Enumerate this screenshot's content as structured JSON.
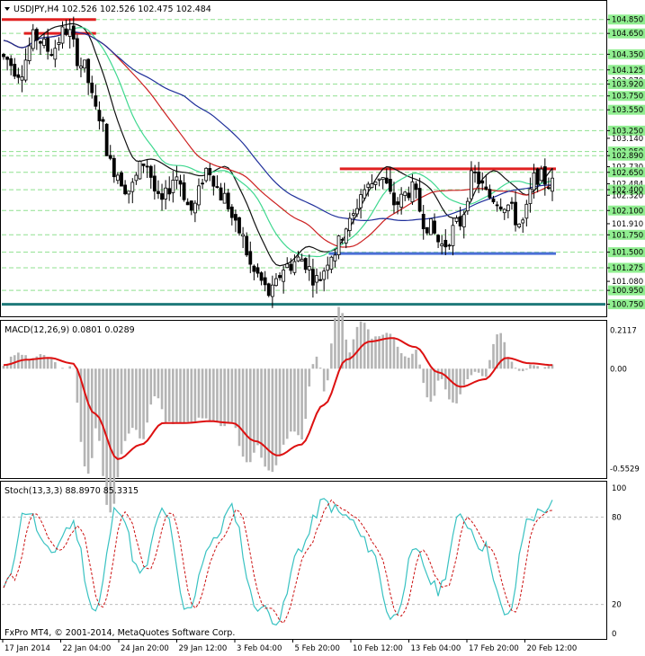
{
  "header": {
    "symbol_line": "USDJPY,H4  102.526 102.526 102.475 102.484",
    "footer": "FxPro MT4, © 2001-2014, MetaQuotes Software Corp."
  },
  "price_panel": {
    "ylim": [
      100.68,
      104.95
    ],
    "price_labels": [
      {
        "text": "104.850",
        "value": 104.85,
        "boxed": true
      },
      {
        "text": "104.650",
        "value": 104.65,
        "boxed": true
      },
      {
        "text": "104.350",
        "value": 104.35,
        "boxed": true
      },
      {
        "text": "104.125",
        "value": 104.125,
        "boxed": true
      },
      {
        "text": "103.970",
        "value": 103.97,
        "boxed": false
      },
      {
        "text": "103.920",
        "value": 103.92,
        "boxed": true
      },
      {
        "text": "103.750",
        "value": 103.75,
        "boxed": true
      },
      {
        "text": "103.550",
        "value": 103.55,
        "boxed": true
      },
      {
        "text": "103.250",
        "value": 103.25,
        "boxed": true
      },
      {
        "text": "103.140",
        "value": 103.14,
        "boxed": false
      },
      {
        "text": "102.950",
        "value": 102.95,
        "boxed": true
      },
      {
        "text": "102.890",
        "value": 102.89,
        "boxed": true
      },
      {
        "text": "102.730",
        "value": 102.73,
        "boxed": false
      },
      {
        "text": "102.650",
        "value": 102.65,
        "boxed": true
      },
      {
        "text": "102.484",
        "value": 102.484,
        "boxed": false
      },
      {
        "text": "102.400",
        "value": 102.4,
        "boxed": true
      },
      {
        "text": "102.320",
        "value": 102.32,
        "boxed": false
      },
      {
        "text": "102.100",
        "value": 102.1,
        "boxed": true
      },
      {
        "text": "101.910",
        "value": 101.91,
        "boxed": false
      },
      {
        "text": "101.750",
        "value": 101.75,
        "boxed": true
      },
      {
        "text": "101.500",
        "value": 101.5,
        "boxed": true
      },
      {
        "text": "101.275",
        "value": 101.275,
        "boxed": true
      },
      {
        "text": "101.080",
        "value": 101.08,
        "boxed": false
      },
      {
        "text": "100.950",
        "value": 100.95,
        "boxed": true
      },
      {
        "text": "100.750",
        "value": 100.75,
        "boxed": true
      }
    ],
    "horizontal_lines": [
      {
        "value": 104.85,
        "from": 0,
        "to": 0.17,
        "color": "#e02020"
      },
      {
        "value": 104.65,
        "from": 0.04,
        "to": 0.17,
        "color": "#e02020"
      },
      {
        "value": 102.7,
        "from": 0.61,
        "to": 1.0,
        "color": "#e02020"
      },
      {
        "value": 101.48,
        "from": 0.59,
        "to": 1.0,
        "color": "#4a6fd6"
      },
      {
        "value": 100.75,
        "from": 0,
        "to": 1.11,
        "color": "#1f7a7a"
      }
    ]
  },
  "macd_panel": {
    "label": "MACD(12,26,9) 0.0801 0.0289",
    "ylim": [
      -0.58,
      0.24
    ],
    "scale_labels": [
      {
        "text": "0.2117",
        "value": 0.2117
      },
      {
        "text": "0.00",
        "value": 0.0
      },
      {
        "text": "-0.5529",
        "value": -0.5529
      }
    ]
  },
  "stoch_panel": {
    "label": "Stoch(13,3,3) 88.8970 85.3315",
    "scale_labels": [
      {
        "text": "100",
        "value": 100
      },
      {
        "text": "80",
        "value": 80
      },
      {
        "text": "20",
        "value": 20
      },
      {
        "text": "0",
        "value": 0
      }
    ]
  },
  "x_axis_labels": [
    "17 Jan 2014",
    "22 Jan 04:00",
    "24 Jan 20:00",
    "29 Jan 12:00",
    "3 Feb 04:00",
    "5 Feb 20:00",
    "10 Feb 12:00",
    "13 Feb 04:00",
    "17 Feb 20:00",
    "20 Feb 12:00"
  ],
  "colors": {
    "candles": "#000000",
    "ma_blue": "#1f2f9a",
    "ma_red": "#cc2020",
    "ma_green": "#40d890",
    "ma_black": "#111111",
    "macd_hist": "#b4b4b4",
    "macd_signal": "#dd1111",
    "stoch_main": "#39c2c2",
    "stoch_signal": "#cc1111",
    "grid_dash": "#8fe08f"
  },
  "chart_data": {
    "type": "candlestick",
    "symbol": "USDJPY",
    "timeframe": "H4",
    "close_anchors": [
      104.3,
      104.1,
      104.6,
      104.4,
      104.7,
      104.2,
      103.5,
      102.7,
      102.4,
      102.8,
      102.2,
      102.6,
      102.1,
      102.7,
      102.3,
      101.8,
      101.2,
      100.9,
      101.3,
      101.4,
      101.1,
      101.5,
      101.9,
      102.4,
      102.6,
      102.2,
      102.4,
      101.9,
      101.6,
      101.9,
      102.6,
      102.3,
      102.2,
      101.9,
      102.6,
      102.48
    ],
    "macd_signal_anchors": [
      0.02,
      0.05,
      0.06,
      0.03,
      -0.25,
      -0.5,
      -0.42,
      -0.3,
      -0.3,
      -0.29,
      -0.3,
      -0.4,
      -0.48,
      -0.42,
      -0.2,
      0.05,
      0.15,
      0.17,
      0.12,
      -0.02,
      -0.1,
      -0.06,
      0.06,
      0.03,
      0.02
    ],
    "stoch_main_anchors": [
      30,
      85,
      55,
      75,
      15,
      88,
      40,
      85,
      15,
      60,
      85,
      20,
      10,
      60,
      90,
      80,
      60,
      10,
      55,
      30,
      80,
      60,
      10,
      80,
      88
    ]
  }
}
